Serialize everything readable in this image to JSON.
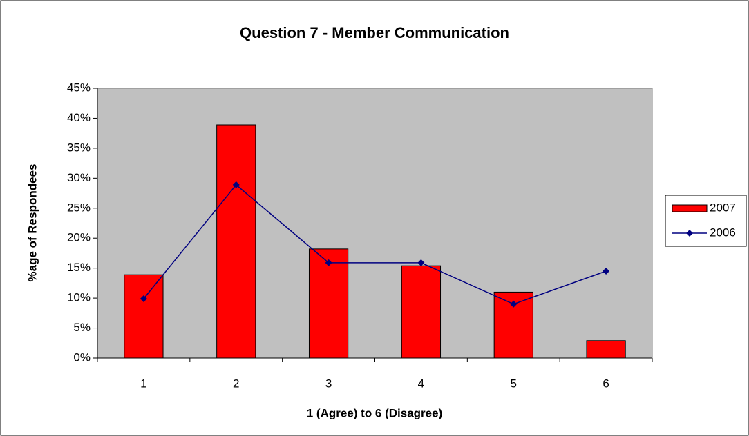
{
  "chart_data": {
    "type": "bar_line",
    "title": "Question 7 - Member Communication",
    "x_label": "1 (Agree) to 6 (Disagree)",
    "y_label": "%age of Respondees",
    "categories": [
      "1",
      "2",
      "3",
      "4",
      "5",
      "6"
    ],
    "series": [
      {
        "name": "2007",
        "type": "bar",
        "color": "#ff0000",
        "values": [
          13.9,
          38.9,
          18.2,
          15.4,
          11.0,
          2.9
        ]
      },
      {
        "name": "2006",
        "type": "line",
        "color": "#000080",
        "values": [
          9.9,
          28.9,
          15.9,
          15.9,
          9.0,
          14.5
        ]
      }
    ],
    "ylim": [
      0,
      45
    ],
    "yticks": [
      {
        "value": 0,
        "label": "0%"
      },
      {
        "value": 5,
        "label": "5%"
      },
      {
        "value": 10,
        "label": "10%"
      },
      {
        "value": 15,
        "label": "15%"
      },
      {
        "value": 20,
        "label": "20%"
      },
      {
        "value": 25,
        "label": "25%"
      },
      {
        "value": 30,
        "label": "30%"
      },
      {
        "value": 35,
        "label": "35%"
      },
      {
        "value": 40,
        "label": "40%"
      },
      {
        "value": 45,
        "label": "45%"
      }
    ],
    "legend": "right",
    "plot_background": "#c0c0c0"
  }
}
